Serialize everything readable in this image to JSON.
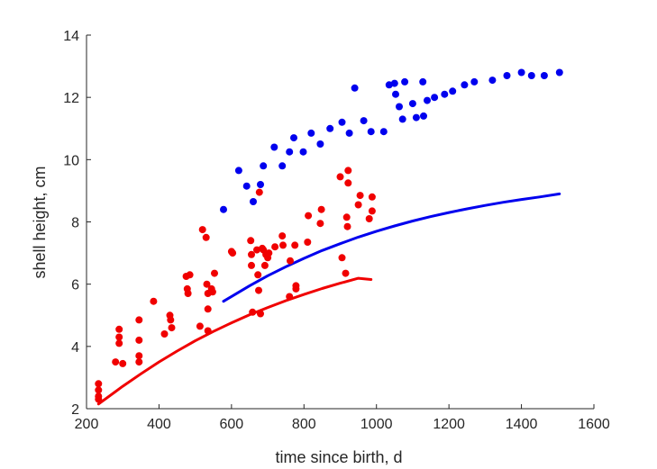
{
  "chart_data": {
    "type": "scatter",
    "xlabel": "time since birth, d",
    "ylabel": "shell height, cm",
    "xlim": [
      200,
      1600
    ],
    "ylim": [
      2,
      14
    ],
    "xticks": [
      200,
      400,
      600,
      800,
      1000,
      1200,
      1400,
      1600
    ],
    "yticks": [
      2,
      4,
      6,
      8,
      10,
      12,
      14
    ],
    "grid": false,
    "legend": "none",
    "colors": {
      "red": "#f00000",
      "blue": "#0000ee",
      "axis": "#262626"
    },
    "series": [
      {
        "type": "scatter",
        "color": "#f00000",
        "points": [
          [
            233,
            2.8
          ],
          [
            233,
            2.6
          ],
          [
            233,
            2.4
          ],
          [
            233,
            2.3
          ],
          [
            280,
            3.5
          ],
          [
            290,
            4.55
          ],
          [
            290,
            4.3
          ],
          [
            290,
            4.1
          ],
          [
            300,
            3.45
          ],
          [
            345,
            4.85
          ],
          [
            345,
            4.2
          ],
          [
            345,
            3.7
          ],
          [
            345,
            3.5
          ],
          [
            385,
            5.45
          ],
          [
            415,
            4.4
          ],
          [
            430,
            5.0
          ],
          [
            432,
            4.85
          ],
          [
            435,
            4.6
          ],
          [
            475,
            6.25
          ],
          [
            478,
            5.85
          ],
          [
            480,
            5.7
          ],
          [
            485,
            6.3
          ],
          [
            513,
            4.65
          ],
          [
            520,
            7.75
          ],
          [
            530,
            7.5
          ],
          [
            532,
            6.0
          ],
          [
            535,
            5.7
          ],
          [
            535,
            5.2
          ],
          [
            535,
            4.5
          ],
          [
            545,
            5.85
          ],
          [
            548,
            5.75
          ],
          [
            553,
            6.35
          ],
          [
            600,
            7.05
          ],
          [
            603,
            7.0
          ],
          [
            653,
            7.4
          ],
          [
            655,
            6.95
          ],
          [
            655,
            6.6
          ],
          [
            658,
            5.1
          ],
          [
            670,
            7.1
          ],
          [
            673,
            6.3
          ],
          [
            675,
            5.8
          ],
          [
            677,
            8.95
          ],
          [
            680,
            5.05
          ],
          [
            685,
            7.15
          ],
          [
            688,
            7.1
          ],
          [
            692,
            6.6
          ],
          [
            695,
            6.95
          ],
          [
            700,
            6.85
          ],
          [
            703,
            7.0
          ],
          [
            720,
            7.2
          ],
          [
            740,
            7.55
          ],
          [
            742,
            7.25
          ],
          [
            760,
            5.6
          ],
          [
            762,
            6.75
          ],
          [
            775,
            7.25
          ],
          [
            778,
            5.95
          ],
          [
            778,
            5.85
          ],
          [
            810,
            7.35
          ],
          [
            812,
            8.2
          ],
          [
            845,
            7.95
          ],
          [
            848,
            8.4
          ],
          [
            900,
            9.45
          ],
          [
            905,
            6.85
          ],
          [
            915,
            6.35
          ],
          [
            918,
            8.15
          ],
          [
            920,
            7.85
          ],
          [
            922,
            9.65
          ],
          [
            922,
            9.25
          ],
          [
            950,
            8.55
          ],
          [
            955,
            8.85
          ],
          [
            980,
            8.1
          ],
          [
            988,
            8.35
          ],
          [
            988,
            8.8
          ]
        ]
      },
      {
        "type": "scatter",
        "color": "#0000ee",
        "points": [
          [
            578,
            8.4
          ],
          [
            620,
            9.65
          ],
          [
            642,
            9.15
          ],
          [
            660,
            8.65
          ],
          [
            680,
            9.2
          ],
          [
            688,
            9.8
          ],
          [
            718,
            10.4
          ],
          [
            740,
            9.8
          ],
          [
            760,
            10.25
          ],
          [
            772,
            10.7
          ],
          [
            798,
            10.25
          ],
          [
            820,
            10.85
          ],
          [
            845,
            10.5
          ],
          [
            872,
            11.0
          ],
          [
            905,
            11.2
          ],
          [
            925,
            10.85
          ],
          [
            940,
            12.3
          ],
          [
            965,
            11.25
          ],
          [
            985,
            10.9
          ],
          [
            1020,
            10.9
          ],
          [
            1035,
            12.4
          ],
          [
            1050,
            12.45
          ],
          [
            1053,
            12.1
          ],
          [
            1063,
            11.7
          ],
          [
            1072,
            11.3
          ],
          [
            1078,
            12.5
          ],
          [
            1100,
            11.8
          ],
          [
            1110,
            11.35
          ],
          [
            1128,
            12.5
          ],
          [
            1130,
            11.4
          ],
          [
            1140,
            11.9
          ],
          [
            1160,
            12.0
          ],
          [
            1188,
            12.1
          ],
          [
            1210,
            12.2
          ],
          [
            1243,
            12.4
          ],
          [
            1270,
            12.5
          ],
          [
            1320,
            12.55
          ],
          [
            1360,
            12.7
          ],
          [
            1400,
            12.8
          ],
          [
            1428,
            12.7
          ],
          [
            1463,
            12.7
          ],
          [
            1505,
            12.8
          ]
        ]
      },
      {
        "type": "line",
        "color": "#f00000",
        "points": [
          [
            233,
            2.15
          ],
          [
            300,
            2.72
          ],
          [
            350,
            3.12
          ],
          [
            400,
            3.5
          ],
          [
            450,
            3.85
          ],
          [
            500,
            4.18
          ],
          [
            550,
            4.48
          ],
          [
            600,
            4.76
          ],
          [
            650,
            5.02
          ],
          [
            700,
            5.25
          ],
          [
            750,
            5.47
          ],
          [
            800,
            5.67
          ],
          [
            850,
            5.86
          ],
          [
            900,
            6.03
          ],
          [
            950,
            6.19
          ],
          [
            985,
            6.15
          ]
        ]
      },
      {
        "type": "line",
        "color": "#0000ee",
        "points": [
          [
            578,
            5.45
          ],
          [
            650,
            5.95
          ],
          [
            700,
            6.27
          ],
          [
            750,
            6.56
          ],
          [
            800,
            6.83
          ],
          [
            850,
            7.08
          ],
          [
            900,
            7.3
          ],
          [
            950,
            7.51
          ],
          [
            1000,
            7.7
          ],
          [
            1050,
            7.87
          ],
          [
            1100,
            8.03
          ],
          [
            1150,
            8.17
          ],
          [
            1200,
            8.3
          ],
          [
            1250,
            8.42
          ],
          [
            1300,
            8.53
          ],
          [
            1350,
            8.63
          ],
          [
            1400,
            8.72
          ],
          [
            1450,
            8.8
          ],
          [
            1505,
            8.9
          ]
        ]
      }
    ]
  }
}
